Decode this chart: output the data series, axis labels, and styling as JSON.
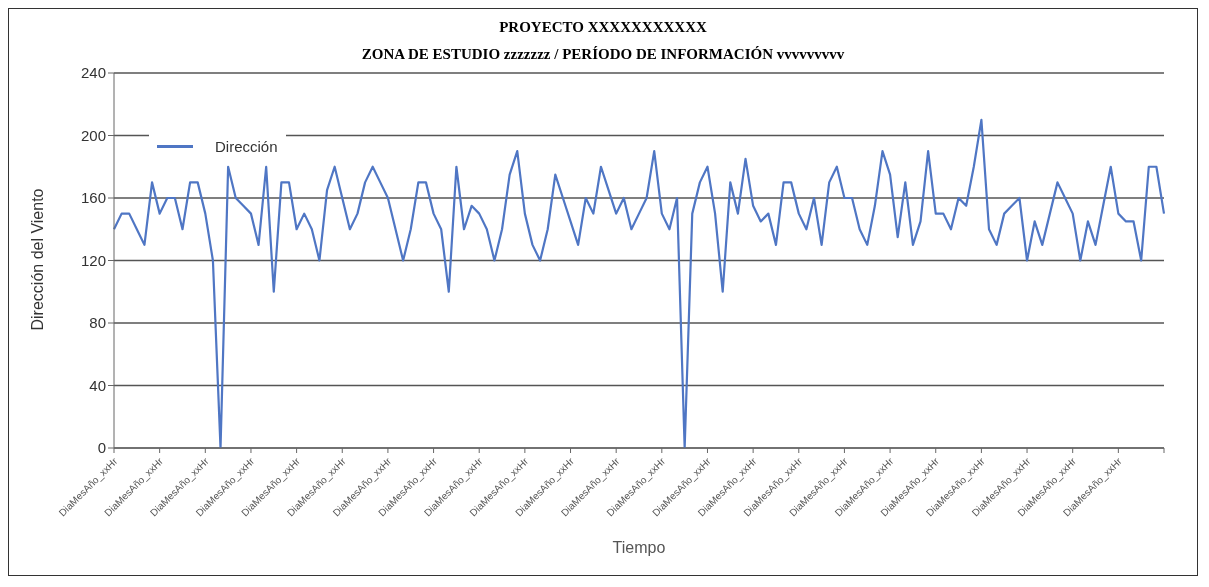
{
  "chart_data": {
    "type": "line",
    "title": "PROYECTO XXXXXXXXXXX",
    "subtitle": "ZONA DE ESTUDIO zzzzzzz / PERÍODO DE INFORMACIÓN vvvvvvvvv",
    "xlabel": "Tiempo",
    "ylabel": "Dirección del Viento",
    "categories": [
      "DiaMesAño_xxHr",
      null,
      null,
      null,
      null,
      null,
      "DiaMesAño_xxHr",
      null,
      null,
      null,
      null,
      null,
      "DiaMesAño_xxHr",
      null,
      null,
      null,
      null,
      null,
      "DiaMesAño_xxHr",
      null,
      null,
      null,
      null,
      null,
      "DiaMesAño_xxHr",
      null,
      null,
      null,
      null,
      null,
      "DiaMesAño_xxHr",
      null,
      null,
      null,
      null,
      null,
      "DiaMesAño_xxHr",
      null,
      null,
      null,
      null,
      null,
      "DiaMesAño_xxHr",
      null,
      null,
      null,
      null,
      null,
      "DiaMesAño_xxHr",
      null,
      null,
      null,
      null,
      null,
      "DiaMesAño_xxHr",
      null,
      null,
      null,
      null,
      null,
      "DiaMesAño_xxHr",
      null,
      null,
      null,
      null,
      null,
      "DiaMesAño_xxHr",
      null,
      null,
      null,
      null,
      null,
      "DiaMesAño_xxHr",
      null,
      null,
      null,
      null,
      null,
      "DiaMesAño_xxHr",
      null,
      null,
      null,
      null,
      null,
      "DiaMesAño_xxHr",
      null,
      null,
      null,
      null,
      null,
      "DiaMesAño_xxHr",
      null,
      null,
      null,
      null,
      null,
      "DiaMesAño_xxHr",
      null,
      null,
      null,
      null,
      null,
      "DiaMesAño_xxHr",
      null,
      null,
      null,
      null,
      null,
      "DiaMesAño_xxHr",
      null,
      null,
      null,
      null,
      null,
      "DiaMesAño_xxHr",
      null,
      null,
      null,
      null,
      null,
      "DiaMesAño_xxHr",
      null,
      null,
      null,
      null,
      null,
      "DiaMesAño_xxHr",
      null,
      null,
      null,
      null,
      null,
      "DiaMesAño_xxHr",
      null,
      null,
      null,
      null,
      null,
      null
    ],
    "series": [
      {
        "name": "Dirección",
        "color": "#4f76c4",
        "values": [
          140,
          150,
          150,
          140,
          130,
          170,
          150,
          160,
          160,
          140,
          170,
          170,
          150,
          120,
          0,
          180,
          160,
          155,
          150,
          130,
          180,
          100,
          170,
          170,
          140,
          150,
          140,
          120,
          165,
          180,
          160,
          140,
          150,
          170,
          180,
          170,
          160,
          140,
          120,
          140,
          170,
          170,
          150,
          140,
          100,
          180,
          140,
          155,
          150,
          140,
          120,
          140,
          175,
          190,
          150,
          130,
          120,
          140,
          175,
          160,
          145,
          130,
          160,
          150,
          180,
          165,
          150,
          160,
          140,
          150,
          160,
          190,
          150,
          140,
          160,
          0,
          150,
          170,
          180,
          150,
          100,
          170,
          150,
          185,
          155,
          145,
          150,
          130,
          170,
          170,
          150,
          140,
          160,
          130,
          170,
          180,
          160,
          160,
          140,
          130,
          155,
          190,
          175,
          135,
          170,
          130,
          145,
          190,
          150,
          150,
          140,
          160,
          155,
          180,
          210,
          140,
          130,
          150,
          155,
          160,
          120,
          145,
          130,
          150,
          170,
          160,
          150,
          120,
          145,
          130,
          155,
          180,
          150,
          145,
          145,
          120,
          180,
          180,
          150
        ]
      }
    ],
    "ylim": [
      0,
      240
    ],
    "yticks": [
      0,
      40,
      80,
      120,
      160,
      200,
      240
    ],
    "grid": "y",
    "legend": "top left",
    "marker": "none",
    "line_style": "solid"
  }
}
